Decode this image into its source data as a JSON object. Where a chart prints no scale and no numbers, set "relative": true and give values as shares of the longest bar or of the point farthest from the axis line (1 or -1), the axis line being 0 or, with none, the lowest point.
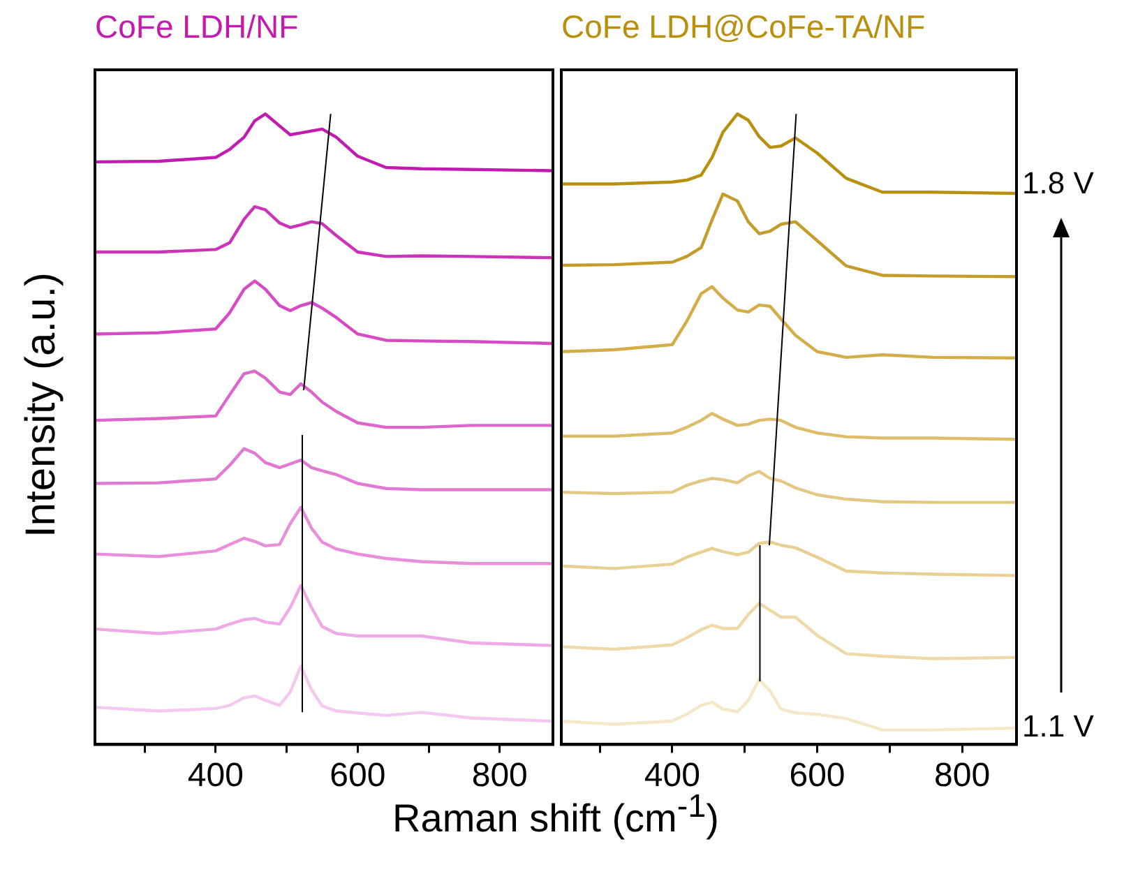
{
  "chart_data": [
    {
      "type": "line",
      "title": "CoFe LDH/NF",
      "xlabel": "Raman shift (cm$^{-1}$)",
      "ylabel": "Intensity (a.u.)",
      "relative": true,
      "marker": "none",
      "xlim": [
        230,
        875
      ],
      "xticks": [
        {
          "value": 300,
          "label": null
        },
        400,
        {
          "value": 500,
          "label": null
        },
        600,
        {
          "value": 700,
          "label": null
        },
        800
      ],
      "x": [
        231,
        320,
        400,
        420,
        440,
        455,
        470,
        490,
        505,
        520,
        535,
        550,
        570,
        600,
        640,
        690,
        760,
        873
      ],
      "series": [
        {
          "color": "#c21bb0",
          "values": [
            0.924,
            0.925,
            0.931,
            0.944,
            0.963,
            0.989,
            1.0,
            0.981,
            0.967,
            0.97,
            0.973,
            0.976,
            0.963,
            0.933,
            0.915,
            0.913,
            0.912,
            0.91
          ]
        },
        {
          "color": "#cc33bb",
          "values": [
            0.781,
            0.781,
            0.785,
            0.796,
            0.833,
            0.853,
            0.848,
            0.827,
            0.82,
            0.824,
            0.829,
            0.826,
            0.807,
            0.781,
            0.774,
            0.775,
            0.774,
            0.772
          ]
        },
        {
          "color": "#d64ac4",
          "values": [
            0.651,
            0.653,
            0.659,
            0.685,
            0.722,
            0.735,
            0.722,
            0.696,
            0.688,
            0.696,
            0.701,
            0.692,
            0.677,
            0.651,
            0.641,
            0.64,
            0.639,
            0.636
          ]
        },
        {
          "color": "#dd66cc",
          "values": [
            0.514,
            0.517,
            0.521,
            0.555,
            0.588,
            0.592,
            0.581,
            0.559,
            0.555,
            0.572,
            0.559,
            0.543,
            0.528,
            0.51,
            0.503,
            0.503,
            0.506,
            0.506
          ]
        },
        {
          "color": "#e27ad5",
          "values": [
            0.414,
            0.415,
            0.421,
            0.443,
            0.469,
            0.462,
            0.447,
            0.439,
            0.445,
            0.451,
            0.439,
            0.434,
            0.428,
            0.414,
            0.406,
            0.404,
            0.404,
            0.404
          ]
        },
        {
          "color": "#e88fdc",
          "values": [
            0.302,
            0.298,
            0.307,
            0.317,
            0.327,
            0.322,
            0.315,
            0.317,
            0.35,
            0.376,
            0.343,
            0.321,
            0.31,
            0.302,
            0.295,
            0.29,
            0.287,
            0.287
          ]
        },
        {
          "color": "#eea9e6",
          "values": [
            0.183,
            0.176,
            0.183,
            0.191,
            0.198,
            0.2,
            0.194,
            0.191,
            0.217,
            0.252,
            0.217,
            0.187,
            0.176,
            0.172,
            0.172,
            0.172,
            0.161,
            0.157
          ]
        },
        {
          "color": "#f5c8ef",
          "values": [
            0.059,
            0.053,
            0.057,
            0.062,
            0.074,
            0.077,
            0.07,
            0.062,
            0.083,
            0.124,
            0.087,
            0.061,
            0.053,
            0.05,
            0.046,
            0.051,
            0.042,
            0.037
          ]
        },
        {
          "type": "line",
          "color": "#000000",
          "x": [
            522,
            522
          ],
          "values": [
            0.051,
            0.491
          ]
        },
        {
          "type": "line",
          "color": "#000000",
          "x": [
            524,
            562
          ],
          "values": [
            0.562,
            1.0
          ]
        }
      ]
    },
    {
      "type": "line",
      "title": "CoFe LDH@CoFe-TA/NF",
      "relative": true,
      "marker": "none",
      "xlim": [
        247,
        875
      ],
      "xticks": [
        {
          "value": 300,
          "label": null
        },
        400,
        {
          "value": 500,
          "label": null
        },
        600,
        {
          "value": 700,
          "label": null
        },
        800
      ],
      "annotations": [
        "1.8 V",
        "1.1 V"
      ],
      "x": [
        247,
        320,
        400,
        420,
        440,
        455,
        470,
        490,
        505,
        520,
        535,
        550,
        570,
        600,
        640,
        690,
        760,
        873
      ],
      "series": [
        {
          "color": "#b8900e",
          "values": [
            0.889,
            0.889,
            0.892,
            0.895,
            0.903,
            0.931,
            0.971,
            1.0,
            0.99,
            0.964,
            0.947,
            0.949,
            0.962,
            0.938,
            0.898,
            0.876,
            0.876,
            0.874
          ]
        },
        {
          "color": "#c49c2a",
          "values": [
            0.76,
            0.761,
            0.765,
            0.774,
            0.788,
            0.832,
            0.873,
            0.862,
            0.829,
            0.81,
            0.814,
            0.825,
            0.829,
            0.799,
            0.759,
            0.744,
            0.743,
            0.742
          ]
        },
        {
          "color": "#d4ac48",
          "values": [
            0.623,
            0.626,
            0.634,
            0.671,
            0.715,
            0.726,
            0.708,
            0.689,
            0.686,
            0.697,
            0.695,
            0.675,
            0.649,
            0.623,
            0.614,
            0.618,
            0.614,
            0.613
          ]
        },
        {
          "color": "#ddbd6a",
          "values": [
            0.489,
            0.489,
            0.494,
            0.503,
            0.514,
            0.525,
            0.516,
            0.506,
            0.508,
            0.514,
            0.516,
            0.514,
            0.503,
            0.494,
            0.488,
            0.486,
            0.486,
            0.484
          ]
        },
        {
          "color": "#e2c882",
          "values": [
            0.4,
            0.398,
            0.4,
            0.411,
            0.418,
            0.422,
            0.42,
            0.415,
            0.426,
            0.433,
            0.422,
            0.418,
            0.407,
            0.396,
            0.389,
            0.385,
            0.384,
            0.384
          ]
        },
        {
          "color": "#e7d092",
          "values": [
            0.283,
            0.279,
            0.286,
            0.297,
            0.305,
            0.311,
            0.306,
            0.301,
            0.305,
            0.319,
            0.321,
            0.316,
            0.312,
            0.297,
            0.275,
            0.272,
            0.27,
            0.268
          ]
        },
        {
          "color": "#eedaa8",
          "values": [
            0.155,
            0.151,
            0.158,
            0.169,
            0.182,
            0.189,
            0.184,
            0.184,
            0.206,
            0.224,
            0.213,
            0.202,
            0.202,
            0.173,
            0.144,
            0.14,
            0.136,
            0.138
          ]
        },
        {
          "color": "#f5e8c8",
          "values": [
            0.037,
            0.032,
            0.037,
            0.048,
            0.062,
            0.067,
            0.056,
            0.052,
            0.07,
            0.103,
            0.085,
            0.056,
            0.05,
            0.048,
            0.041,
            0.023,
            0.023,
            0.026
          ]
        },
        {
          "type": "line",
          "color": "#000000",
          "x": [
            521,
            521
          ],
          "values": [
            0.1,
            0.316
          ]
        },
        {
          "type": "line",
          "color": "#000000",
          "x": [
            534,
            571
          ],
          "values": [
            0.316,
            1.0
          ]
        }
      ]
    }
  ]
}
